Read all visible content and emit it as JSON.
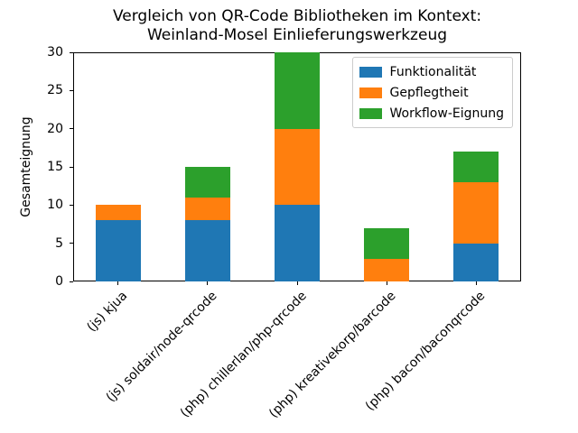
{
  "chart_data": {
    "type": "bar",
    "stacked": true,
    "title_lines": [
      "Vergleich von QR-Code Bibliotheken im Kontext:",
      "Weinland-Mosel Einlieferungswerkzeug"
    ],
    "title": "Vergleich von QR-Code Bibliotheken im Kontext:\nWeinland-Mosel Einlieferungswerkzeug",
    "xlabel": "",
    "ylabel": "Gesamteignung",
    "categories": [
      "(js) kjua",
      "(js) soldair/node-qrcode",
      "(php) chillerlan/php-qrcode",
      "(php) kreativekorp/barcode",
      "(php) bacon/baconqrcode"
    ],
    "series": [
      {
        "name": "Funktionalität",
        "color": "#1f77b4",
        "values": [
          8,
          8,
          10,
          0,
          5
        ]
      },
      {
        "name": "Gepflegtheit",
        "color": "#ff7f0e",
        "values": [
          2,
          3,
          10,
          3,
          8
        ]
      },
      {
        "name": "Workflow-Eignung",
        "color": "#2ca02c",
        "values": [
          0,
          4,
          10,
          4,
          4
        ]
      }
    ],
    "totals": [
      10,
      15,
      30,
      7,
      17
    ],
    "ylim": [
      0,
      30
    ],
    "yticks": [
      0,
      5,
      10,
      15,
      20,
      25,
      30
    ],
    "legend_position": "upper right",
    "grid": false,
    "tick_label_rotation": 45,
    "frame_color": "#000000",
    "background_color": "#ffffff"
  }
}
